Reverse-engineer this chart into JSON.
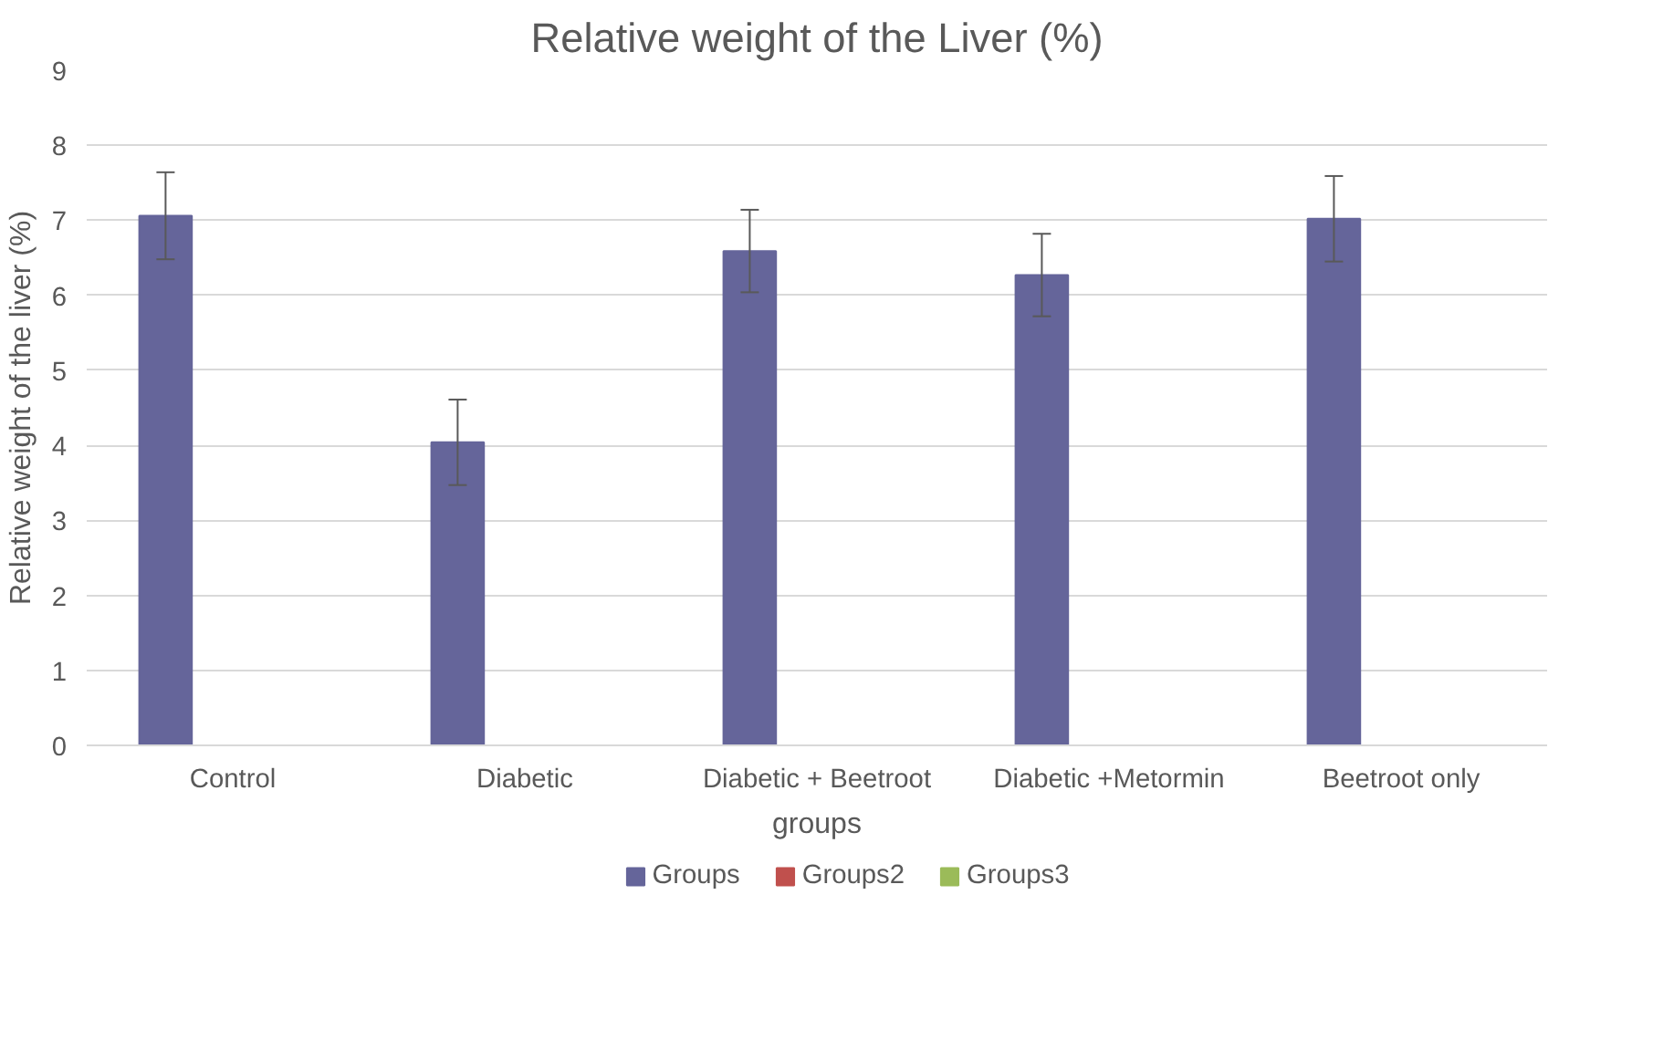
{
  "chart_data": {
    "type": "bar",
    "title": "Relative weight of the Liver (%)",
    "xlabel": "groups",
    "ylabel": "Relative weight of the liver (%)",
    "categories": [
      "Control",
      "Diabetic",
      "Diabetic + Beetroot",
      "Diabetic +Metormin",
      "Beetroot only"
    ],
    "series": [
      {
        "name": "Groups",
        "color": "#65659a",
        "values": [
          7.06,
          4.04,
          6.59,
          6.27,
          7.02
        ],
        "errors": [
          0.58,
          0.57,
          0.55,
          0.55,
          0.57
        ]
      },
      {
        "name": "Groups2",
        "color": "#c0504d",
        "values": [
          null,
          null,
          null,
          null,
          null
        ]
      },
      {
        "name": "Groups3",
        "color": "#9bbb59",
        "values": [
          null,
          null,
          null,
          null,
          null
        ]
      }
    ],
    "ylim": [
      0,
      9
    ],
    "yticks": [
      0,
      1,
      2,
      3,
      4,
      5,
      6,
      7,
      8,
      9
    ],
    "grid": "y",
    "legend": "bottom"
  }
}
